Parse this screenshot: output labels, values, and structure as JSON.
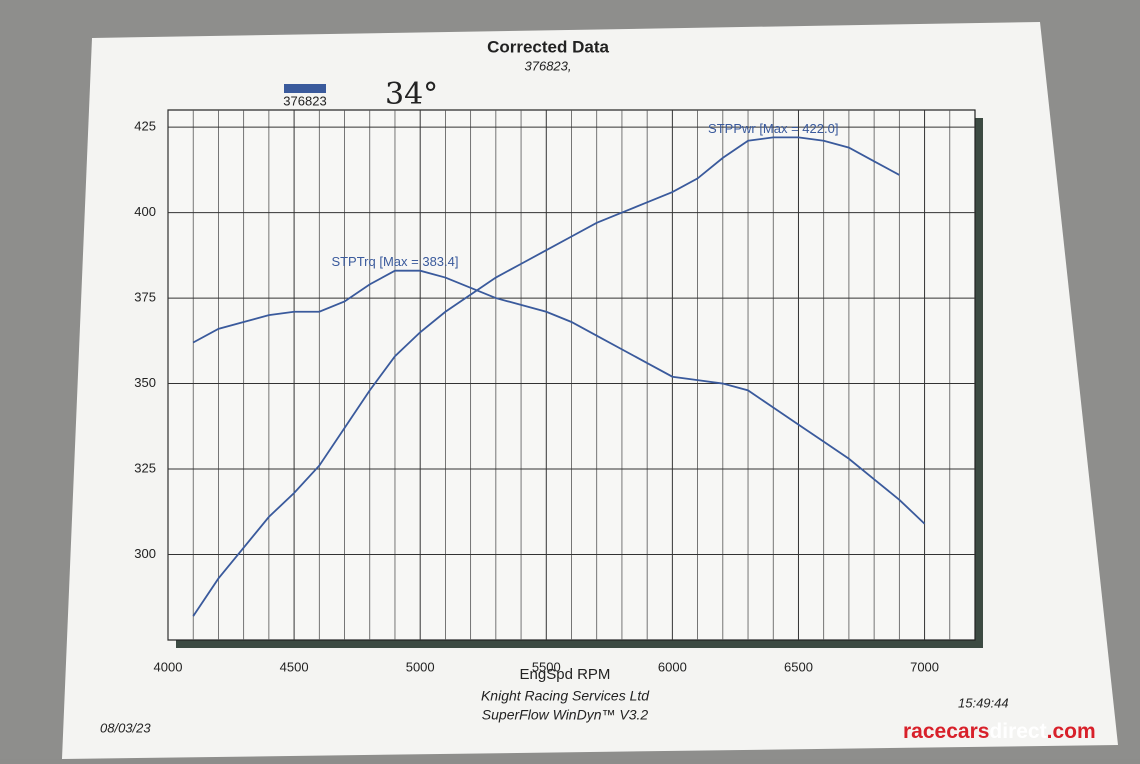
{
  "chart_data": {
    "type": "line",
    "title": "Corrected Data",
    "subtitle": "376823,",
    "legend": {
      "label": "376823",
      "color": "#3a5a9c"
    },
    "handwritten_note": "34°",
    "x_label": "EngSpd RPM",
    "x": [
      4100,
      4200,
      4300,
      4400,
      4500,
      4600,
      4700,
      4800,
      4900,
      5000,
      5100,
      5200,
      5300,
      5400,
      5500,
      5600,
      5700,
      5800,
      5900,
      6000,
      6100,
      6200,
      6300,
      6400,
      6500,
      6600,
      6700,
      6800,
      6900,
      7000
    ],
    "series": [
      {
        "name": "STPTrq [Max = 383.4]",
        "color": "#3a5a9c",
        "values": [
          362,
          366,
          368,
          370,
          371,
          371,
          374,
          379,
          383,
          383,
          381,
          378,
          375,
          373,
          371,
          368,
          364,
          360,
          356,
          352,
          351,
          350,
          348,
          343,
          338,
          333,
          328,
          322,
          316,
          309
        ]
      },
      {
        "name": "STPPwr [Max = 422.0]",
        "color": "#3a5a9c",
        "values": [
          282,
          293,
          302,
          311,
          318,
          326,
          337,
          348,
          358,
          365,
          371,
          376,
          381,
          385,
          389,
          393,
          397,
          400,
          403,
          406,
          410,
          416,
          421,
          422,
          422,
          421,
          419,
          415,
          411,
          null
        ]
      }
    ],
    "xlim": [
      4000,
      7200
    ],
    "xticks": [
      4000,
      4500,
      5000,
      5500,
      6000,
      6500,
      7000
    ],
    "xgrid": [
      4100,
      4200,
      4300,
      4400,
      4600,
      4700,
      4800,
      4900,
      5100,
      5200,
      5300,
      5400,
      5600,
      5700,
      5800,
      5900,
      6100,
      6200,
      6300,
      6400,
      6600,
      6700,
      6800,
      6900,
      7100
    ],
    "ylim": [
      275,
      430
    ],
    "yticks": [
      300,
      325,
      350,
      375,
      400,
      425
    ],
    "grid": true
  },
  "footer": {
    "company": "Knight Racing Services Ltd",
    "software": "SuperFlow WinDyn™ V3.2",
    "date": "08/03/23",
    "time": "15:49:44"
  },
  "watermark": {
    "part1": "racecars",
    "part2": "direct",
    "part3": ".com"
  }
}
